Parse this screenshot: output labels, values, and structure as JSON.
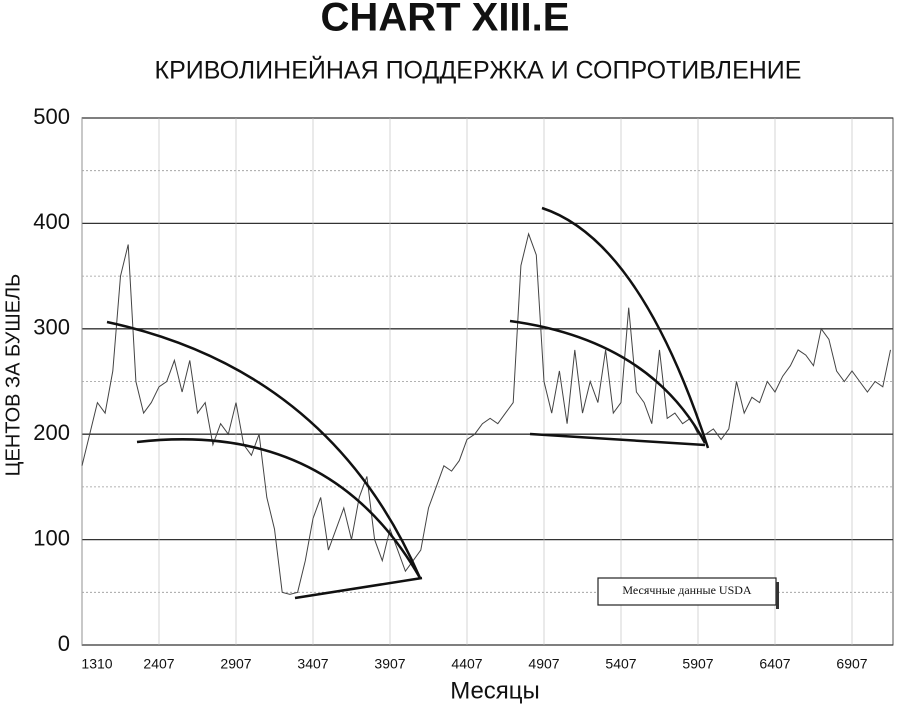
{
  "chart_data": {
    "type": "line",
    "title": "CHART  XIII.E",
    "subtitle": "КРИВОЛИНЕЙНАЯ ПОДДЕРЖКА И СОПРОТИВЛЕНИЕ",
    "y_label": "ЦЕНТОВ ЗА БУШЕЛЬ",
    "x_label": "Месяцы",
    "annotation": "Месячные данные USDA",
    "categories": [
      "1310",
      null,
      null,
      null,
      null,
      null,
      null,
      null,
      null,
      null,
      "2407",
      null,
      null,
      null,
      null,
      null,
      null,
      null,
      null,
      null,
      "2907",
      null,
      null,
      null,
      null,
      null,
      null,
      null,
      null,
      null,
      "3407",
      null,
      null,
      null,
      null,
      null,
      null,
      null,
      null,
      null,
      "3907",
      null,
      null,
      null,
      null,
      null,
      null,
      null,
      null,
      null,
      "4407",
      null,
      null,
      null,
      null,
      null,
      null,
      null,
      null,
      null,
      "4907",
      null,
      null,
      null,
      null,
      null,
      null,
      null,
      null,
      null,
      "5407",
      null,
      null,
      null,
      null,
      null,
      null,
      null,
      null,
      null,
      "5907",
      null,
      null,
      null,
      null,
      null,
      null,
      null,
      null,
      null,
      "6407",
      null,
      null,
      null,
      null,
      null,
      null,
      null,
      null,
      null,
      "6907",
      null,
      null,
      null,
      null,
      null
    ],
    "values": [
      170,
      200,
      230,
      220,
      260,
      350,
      380,
      250,
      220,
      230,
      245,
      250,
      270,
      240,
      270,
      220,
      230,
      190,
      210,
      200,
      230,
      190,
      180,
      200,
      140,
      110,
      50,
      48,
      50,
      80,
      120,
      140,
      90,
      110,
      130,
      100,
      140,
      160,
      100,
      80,
      110,
      90,
      70,
      80,
      90,
      130,
      150,
      170,
      165,
      175,
      195,
      200,
      210,
      215,
      210,
      220,
      230,
      360,
      390,
      370,
      250,
      220,
      260,
      210,
      280,
      220,
      250,
      230,
      280,
      220,
      230,
      320,
      240,
      230,
      210,
      280,
      215,
      220,
      210,
      215,
      200,
      200,
      205,
      195,
      205,
      250,
      220,
      235,
      230,
      250,
      240,
      255,
      265,
      280,
      275,
      265,
      300,
      290,
      260,
      250,
      260,
      250,
      240,
      250,
      245,
      280
    ],
    "color": "#444444",
    "ylim": [
      0,
      500
    ],
    "yticks": [
      0,
      100,
      200,
      300,
      400,
      500
    ],
    "y_minor_gridlines": [
      50,
      150,
      250,
      350,
      450
    ],
    "grid": true
  }
}
